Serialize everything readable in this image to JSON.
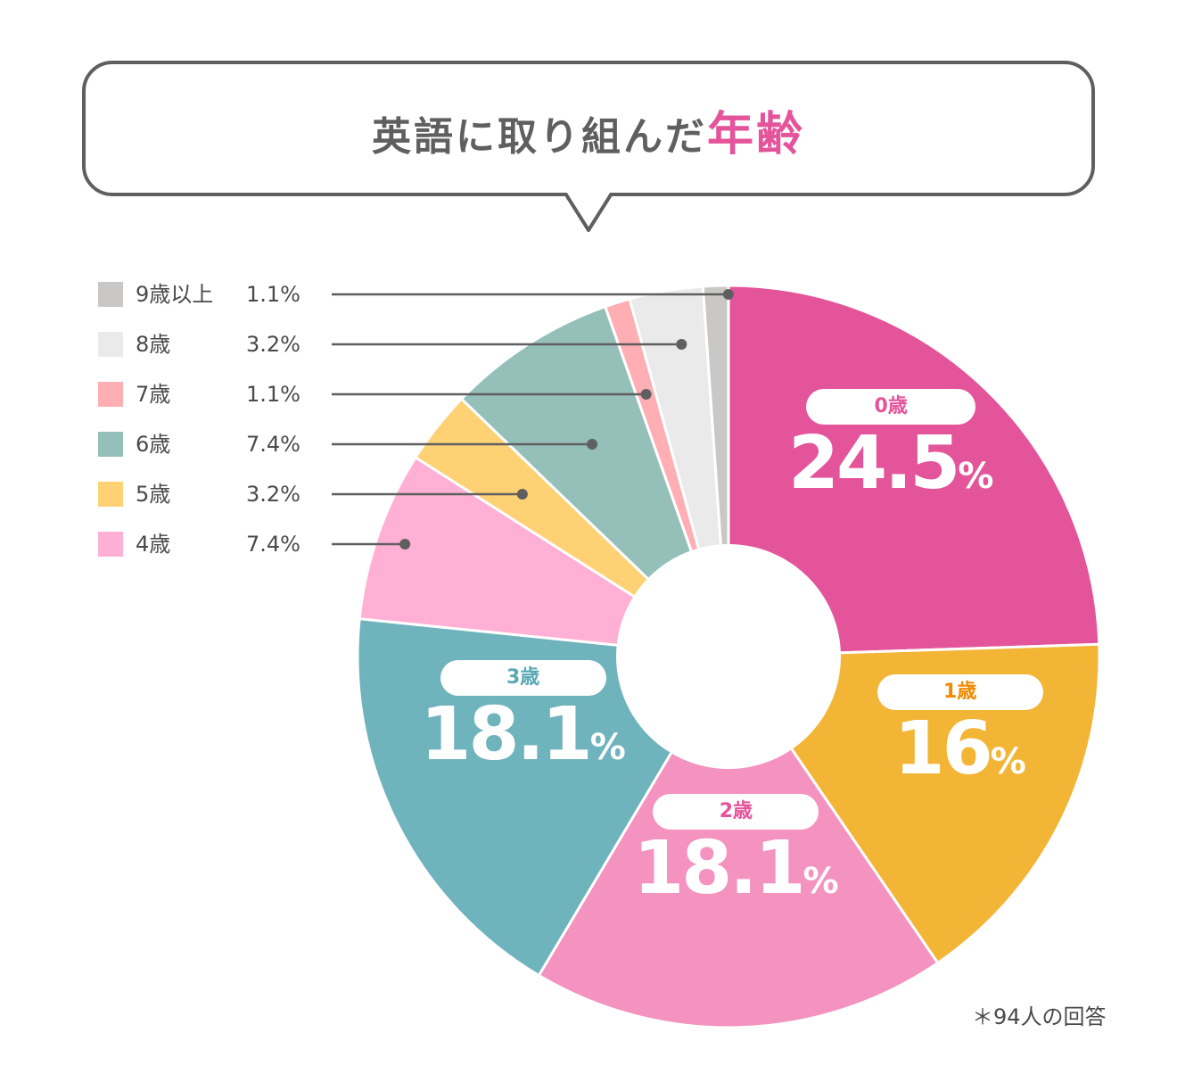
{
  "title": {
    "main": "英語に取り組んだ",
    "highlight": "年齢"
  },
  "footnote": "＊94人の回答",
  "chart_data": {
    "type": "pie",
    "categories": [
      "0歳",
      "1歳",
      "2歳",
      "3歳",
      "4歳",
      "5歳",
      "6歳",
      "7歳",
      "8歳",
      "9歳以上"
    ],
    "values": [
      24.5,
      16,
      18.1,
      18.1,
      7.4,
      3.2,
      7.4,
      1.1,
      3.2,
      1.1
    ],
    "value_labels": [
      "24.5",
      "16",
      "18.1",
      "18.1",
      "7.4%",
      "3.2%",
      "7.4%",
      "1.1%",
      "3.2%",
      "1.1%"
    ],
    "unit": "%",
    "colors": [
      "#e4549a",
      "#f2b535",
      "#f492c0",
      "#6fb3bd",
      "#ffb0d4",
      "#ffd175",
      "#95bfb9",
      "#ffaeb3",
      "#eaeaea",
      "#c9c8c6"
    ],
    "label_colors": [
      "#e4549a",
      "#f08a00",
      "#e4549a",
      "#5aa9b3"
    ],
    "legend_order": [
      9,
      8,
      7,
      6,
      5,
      4
    ],
    "legend_placement": "left"
  }
}
